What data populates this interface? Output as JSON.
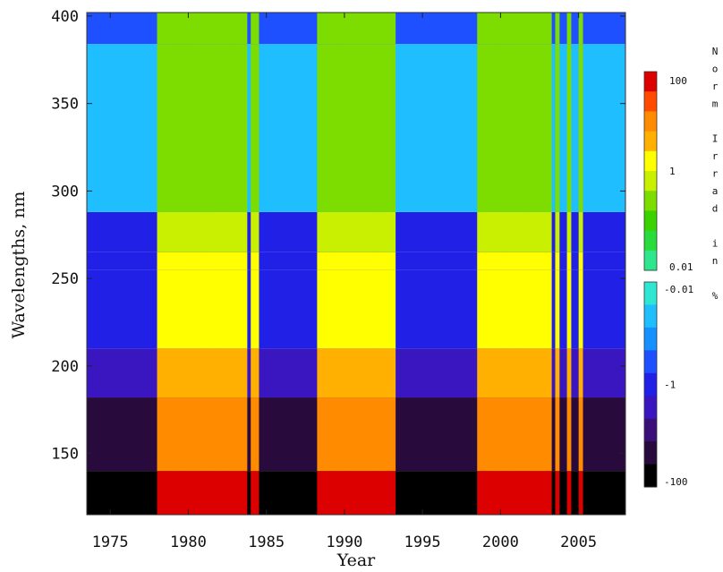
{
  "chart_data": {
    "type": "heatmap",
    "title": "",
    "xlabel": "Year",
    "ylabel": "Wavelengths, nm",
    "xlim": [
      1973.5,
      2008
    ],
    "ylim": [
      115,
      402
    ],
    "xticks": [
      1975,
      1980,
      1985,
      1990,
      1995,
      2000,
      2005
    ],
    "xtick_labels": [
      "1975",
      "1980",
      "1985",
      "1990",
      "1995",
      "2000",
      "2005"
    ],
    "yticks": [
      150,
      200,
      250,
      300,
      350,
      400
    ],
    "ytick_labels": [
      "150",
      "200",
      "250",
      "300",
      "350",
      "400"
    ],
    "grid": false,
    "colorbar": {
      "label": "Norm Irrad in %",
      "positive_ticks": [
        "100",
        "1",
        "0.01"
      ],
      "negative_ticks": [
        "-0.01",
        "-1",
        "-100"
      ],
      "positive_colors": [
        "#dc0000",
        "#ff4a00",
        "#ff8c00",
        "#ffb000",
        "#ffff00",
        "#c8f000",
        "#7ddc00",
        "#3cd200",
        "#28dc3c",
        "#2ee68c"
      ],
      "negative_colors": [
        "#2ee6d2",
        "#1ebeff",
        "#1490ff",
        "#1e50ff",
        "#2020e6",
        "#3a16c0",
        "#3a1078",
        "#280a3c",
        "#000000"
      ]
    },
    "high_activity_periods": [
      {
        "start": 1978.0,
        "end": 1983.8
      },
      {
        "start": 1988.3,
        "end": 1993.2
      },
      {
        "start": 1998.5,
        "end": 2003.3
      }
    ],
    "isolated_active_lines": [
      1983.5,
      1984.1,
      1984.4,
      1993.1,
      1998.8,
      2003.6,
      2004.0,
      2004.4,
      2005.2
    ],
    "wavelength_bands": [
      {
        "from": 115,
        "to": 140,
        "quiet_value": -80,
        "active_value": 100
      },
      {
        "from": 140,
        "to": 182,
        "quiet_value": -20,
        "active_value": 12
      },
      {
        "from": 182,
        "to": 210,
        "quiet_value": -3,
        "active_value": 6
      },
      {
        "from": 210,
        "to": 255,
        "quiet_value": -1.2,
        "active_value": 2
      },
      {
        "from": 255,
        "to": 265,
        "quiet_value": -1.0,
        "active_value": 1.3
      },
      {
        "from": 265,
        "to": 288,
        "quiet_value": -0.6,
        "active_value": 0.5
      },
      {
        "from": 288,
        "to": 384,
        "quiet_value": -0.05,
        "active_value": 0.3
      },
      {
        "from": 384,
        "to": 402,
        "quiet_value": -0.3,
        "active_value": 0.2
      }
    ]
  }
}
